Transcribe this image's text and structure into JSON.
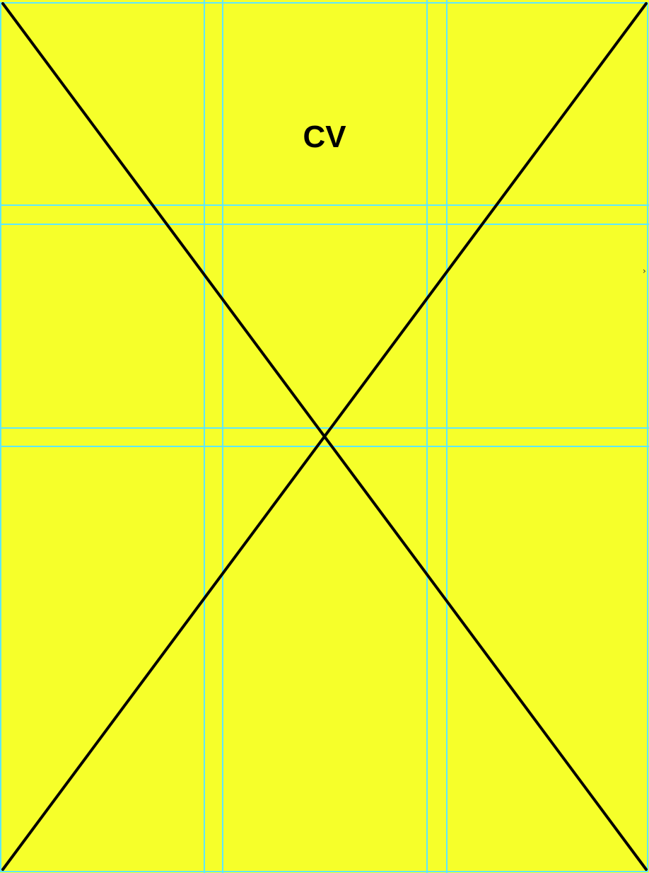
{
  "page": {
    "title": "CV",
    "edge_glyph": "›"
  },
  "colors": {
    "background": "#f6ff2a",
    "guide": "#5ee8ff",
    "cross": "#000000"
  }
}
